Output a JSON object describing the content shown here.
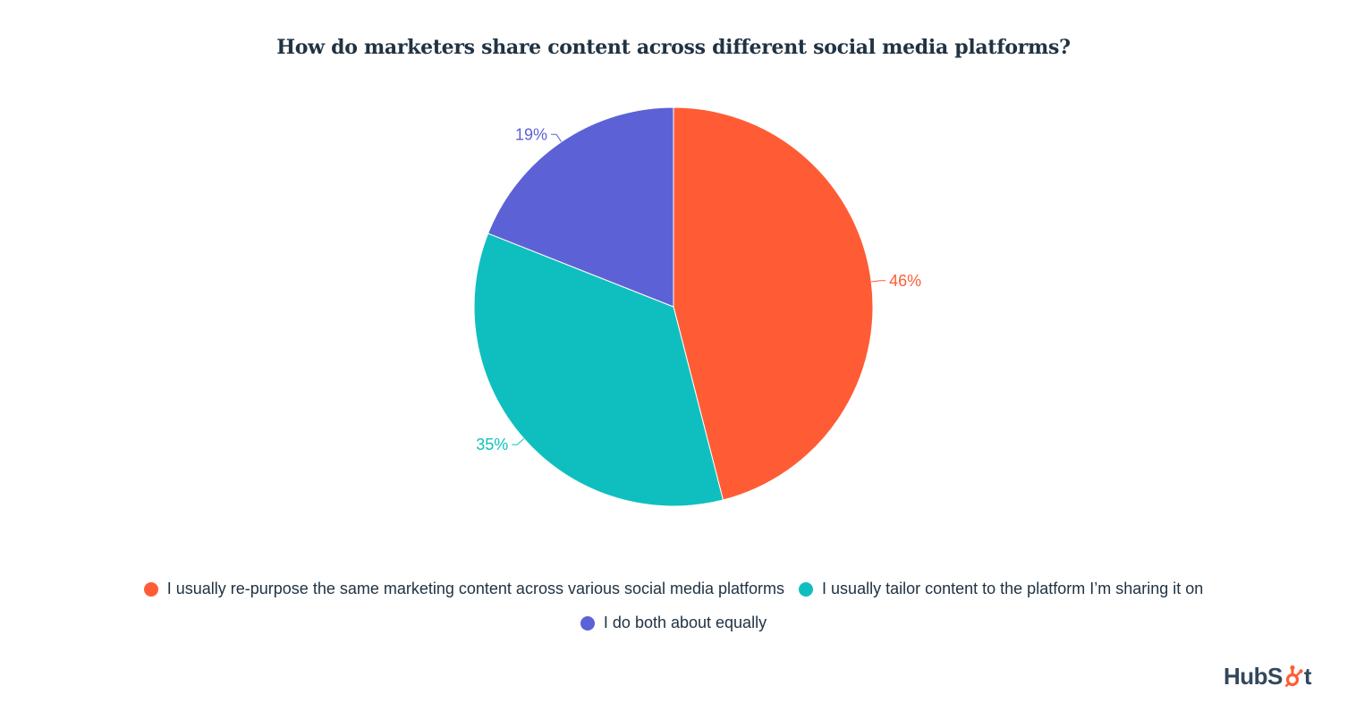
{
  "chart_data": {
    "type": "pie",
    "title": "How do marketers share content across different social media platforms?",
    "slices": [
      {
        "label": "I usually re-purpose the same marketing content across various social media platforms",
        "value": 46,
        "display": "46%",
        "color": "#ff5c35"
      },
      {
        "label": "I usually tailor content to the platform I’m sharing it on",
        "value": 35,
        "display": "35%",
        "color": "#0fbfbf"
      },
      {
        "label": "I do both about equally",
        "value": 19,
        "display": "19%",
        "color": "#5c62d6"
      }
    ],
    "start_angle_deg": 0,
    "direction": "clockwise",
    "legend_position": "bottom-center"
  },
  "logo": {
    "text_before": "HubS",
    "text_after": "t",
    "color": "#33475b",
    "accent": "#ff5c35",
    "icon": "sprocket-icon"
  }
}
